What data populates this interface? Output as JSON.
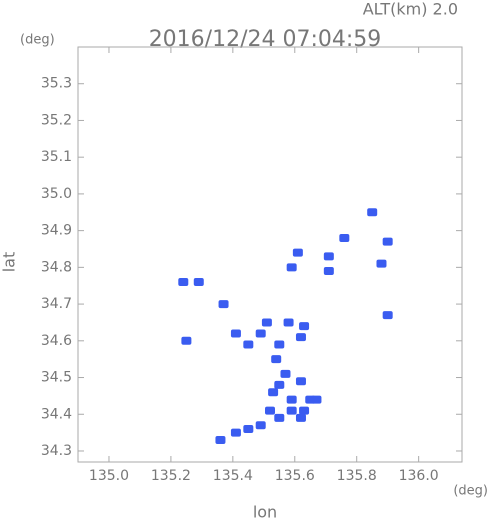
{
  "chart_data": {
    "type": "scatter",
    "title": "2016/12/24 07:04:59",
    "altitude_label": "ALT(km) 2.0",
    "y_unit": "(deg)",
    "x_unit": "(deg)",
    "xlabel": "lon",
    "ylabel": "lat",
    "xlim": [
      134.9,
      136.14
    ],
    "ylim": [
      34.27,
      35.4
    ],
    "xticks": [
      {
        "value": 135.0,
        "label": "135.0"
      },
      {
        "value": 135.2,
        "label": "135.2"
      },
      {
        "value": 135.4,
        "label": "135.4"
      },
      {
        "value": 135.6,
        "label": "135.6"
      },
      {
        "value": 135.8,
        "label": "135.8"
      },
      {
        "value": 136.0,
        "label": "136.0"
      }
    ],
    "yticks": [
      {
        "value": 34.3,
        "label": "34.3"
      },
      34.4,
      34.5,
      34.6,
      34.7,
      34.8,
      34.9,
      {
        "value": 35.0,
        "label": "35.0"
      },
      35.1,
      35.2,
      35.3
    ],
    "series": [
      {
        "color": "#3a5cf0",
        "x": [
          135.85,
          135.76,
          135.9,
          135.88,
          135.71,
          135.71,
          135.61,
          135.59,
          135.24,
          135.29,
          135.25,
          135.37,
          135.9,
          135.41,
          135.51,
          135.58,
          135.63,
          135.49,
          135.55,
          135.62,
          135.45,
          135.54,
          135.57,
          135.55,
          135.62,
          135.53,
          135.59,
          135.65,
          135.52,
          135.59,
          135.63,
          135.67,
          135.62,
          135.55,
          135.49,
          135.45,
          135.41,
          135.36
        ],
        "values": [
          34.95,
          34.88,
          34.87,
          34.81,
          34.83,
          34.79,
          34.84,
          34.8,
          34.76,
          34.76,
          34.6,
          34.7,
          34.67,
          34.62,
          34.65,
          34.65,
          34.64,
          34.62,
          34.59,
          34.61,
          34.59,
          34.55,
          34.51,
          34.48,
          34.49,
          34.46,
          34.44,
          34.44,
          34.41,
          34.41,
          34.41,
          34.44,
          34.39,
          34.39,
          34.37,
          34.36,
          34.35,
          34.33
        ]
      }
    ]
  }
}
